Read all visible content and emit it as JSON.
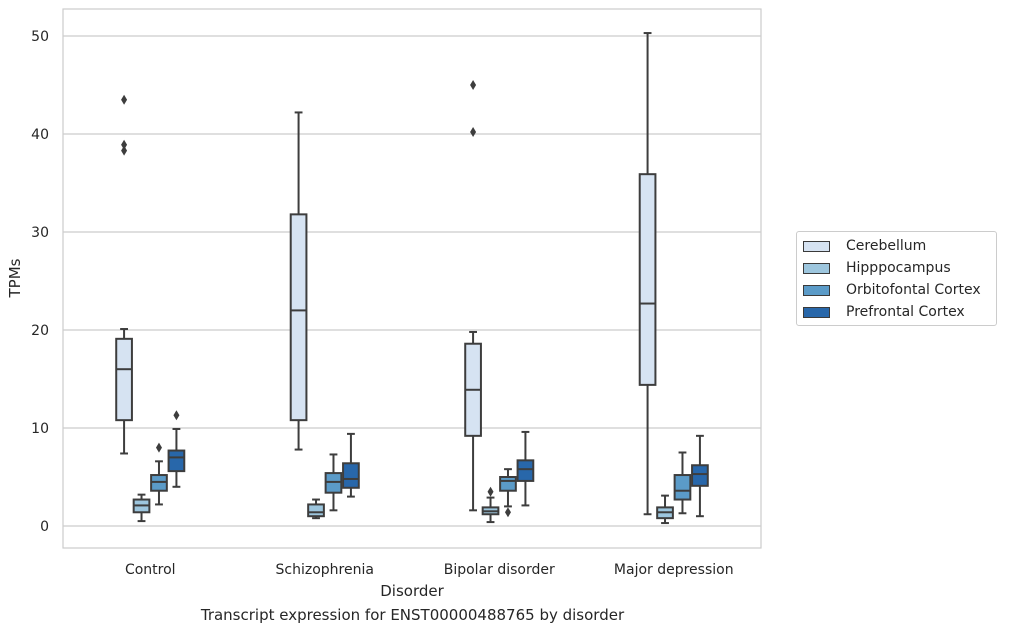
{
  "caption": "Transcript expression for ENST00000488765 by disorder",
  "chart_data": {
    "type": "box",
    "xlabel": "Disorder",
    "ylabel": "TPMs",
    "ylim": [
      -2,
      53
    ],
    "yticks": [
      0,
      10,
      20,
      30,
      40,
      50
    ],
    "grid": "horizontal",
    "legend_position": "right",
    "categories": [
      "Control",
      "Schizophrenia",
      "Bipolar disorder",
      "Major depression"
    ],
    "series": [
      {
        "name": "Cerebellum",
        "color": "#d6e3f2",
        "boxes": [
          {
            "whisker_low": 7.4,
            "q1": 10.8,
            "median": 16.0,
            "q3": 19.1,
            "whisker_high": 20.1,
            "outliers": [
              38.3,
              38.9,
              43.5
            ]
          },
          {
            "whisker_low": 7.8,
            "q1": 10.8,
            "median": 22.0,
            "q3": 31.8,
            "whisker_high": 42.2,
            "outliers": []
          },
          {
            "whisker_low": 1.6,
            "q1": 9.2,
            "median": 13.9,
            "q3": 18.6,
            "whisker_high": 19.8,
            "outliers": [
              40.2,
              45.0
            ]
          },
          {
            "whisker_low": 1.2,
            "q1": 14.4,
            "median": 22.7,
            "q3": 35.9,
            "whisker_high": 50.3,
            "outliers": []
          }
        ]
      },
      {
        "name": "Hipppocampus",
        "color": "#9dc6de",
        "boxes": [
          {
            "whisker_low": 0.5,
            "q1": 1.4,
            "median": 2.1,
            "q3": 2.7,
            "whisker_high": 3.2,
            "outliers": []
          },
          {
            "whisker_low": 0.8,
            "q1": 1.0,
            "median": 1.4,
            "q3": 2.2,
            "whisker_high": 2.7,
            "outliers": []
          },
          {
            "whisker_low": 0.4,
            "q1": 1.2,
            "median": 1.5,
            "q3": 1.9,
            "whisker_high": 2.9,
            "outliers": [
              3.5
            ]
          },
          {
            "whisker_low": 0.3,
            "q1": 0.8,
            "median": 1.4,
            "q3": 1.9,
            "whisker_high": 3.1,
            "outliers": []
          }
        ]
      },
      {
        "name": "Orbitofontal Cortex",
        "color": "#5b9bc8",
        "boxes": [
          {
            "whisker_low": 2.2,
            "q1": 3.6,
            "median": 4.5,
            "q3": 5.2,
            "whisker_high": 6.6,
            "outliers": [
              8.0
            ]
          },
          {
            "whisker_low": 1.6,
            "q1": 3.4,
            "median": 4.5,
            "q3": 5.4,
            "whisker_high": 7.3,
            "outliers": []
          },
          {
            "whisker_low": 2.0,
            "q1": 3.6,
            "median": 4.6,
            "q3": 5.0,
            "whisker_high": 5.8,
            "outliers": [
              1.4
            ]
          },
          {
            "whisker_low": 1.3,
            "q1": 2.7,
            "median": 3.6,
            "q3": 5.2,
            "whisker_high": 7.5,
            "outliers": []
          }
        ]
      },
      {
        "name": "Prefrontal Cortex",
        "color": "#2867aa",
        "boxes": [
          {
            "whisker_low": 4.0,
            "q1": 5.6,
            "median": 7.0,
            "q3": 7.7,
            "whisker_high": 9.9,
            "outliers": [
              11.3
            ]
          },
          {
            "whisker_low": 3.0,
            "q1": 3.9,
            "median": 4.8,
            "q3": 6.4,
            "whisker_high": 9.4,
            "outliers": []
          },
          {
            "whisker_low": 2.1,
            "q1": 4.6,
            "median": 5.8,
            "q3": 6.7,
            "whisker_high": 9.6,
            "outliers": []
          },
          {
            "whisker_low": 1.0,
            "q1": 4.1,
            "median": 5.3,
            "q3": 6.2,
            "whisker_high": 9.2,
            "outliers": []
          }
        ]
      }
    ]
  }
}
